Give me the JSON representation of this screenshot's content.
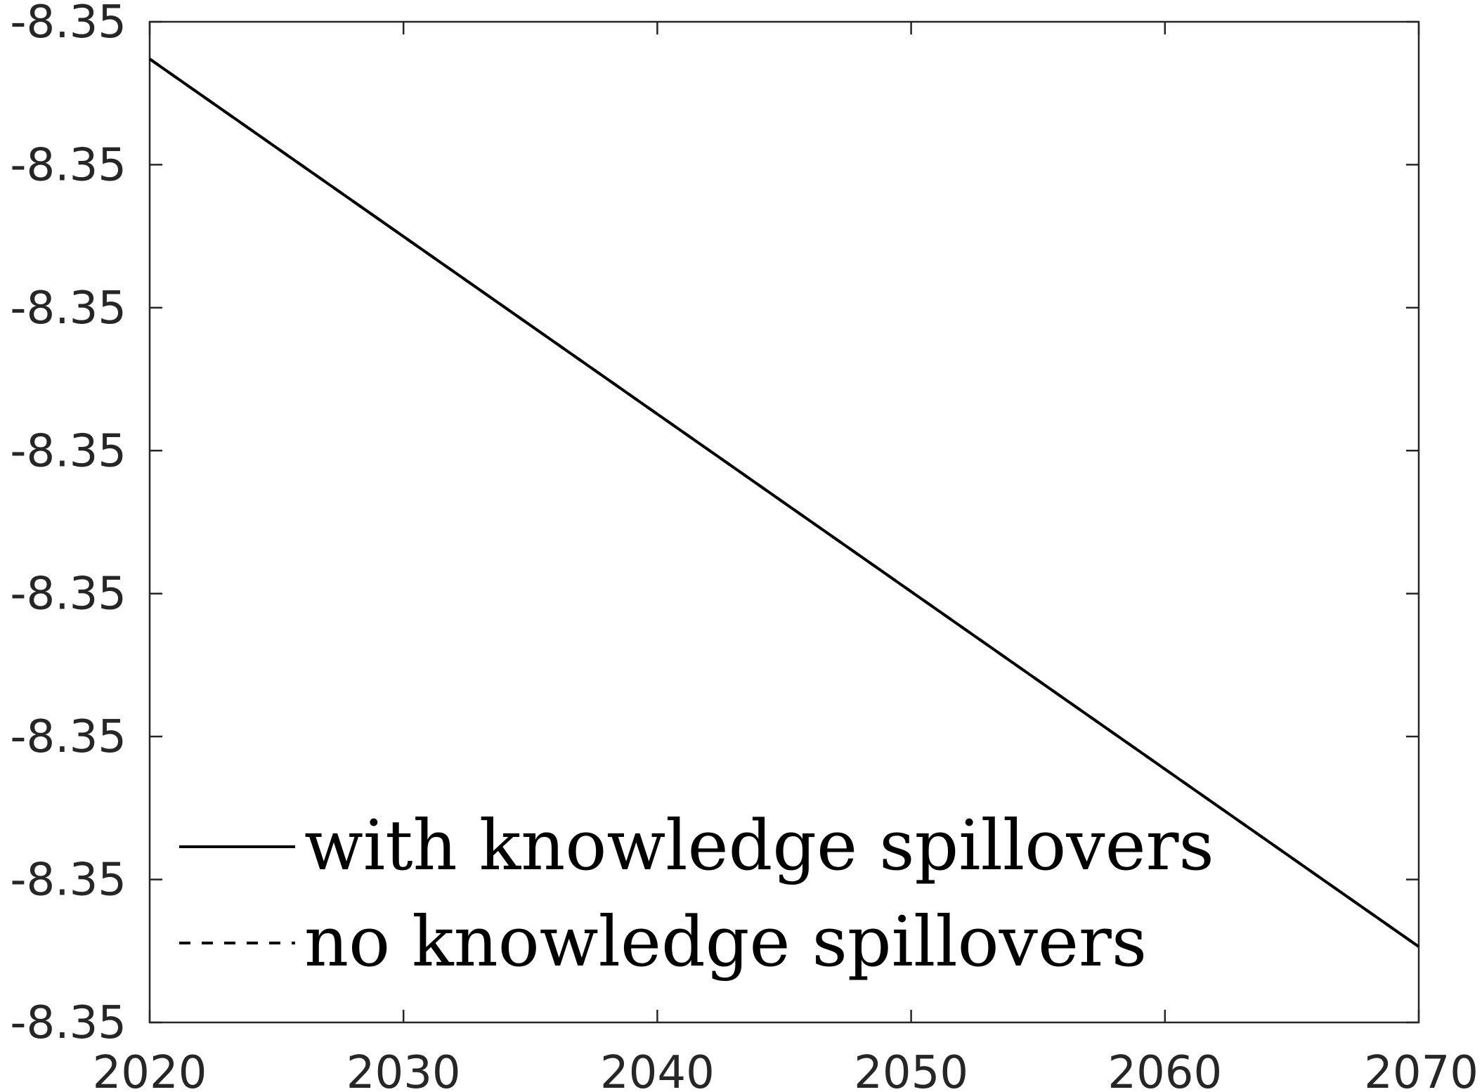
{
  "chart_data": {
    "type": "line",
    "title": "",
    "xlabel": "",
    "ylabel": "",
    "x_ticks": [
      "2020",
      "2030",
      "2040",
      "2050",
      "2060",
      "2070"
    ],
    "y_ticks": [
      "-8.35",
      "-8.35",
      "-8.35",
      "-8.35",
      "-8.35",
      "-8.35",
      "-8.35",
      "-8.35"
    ],
    "xlim": [
      2020,
      2070
    ],
    "ylim": [
      0,
      7
    ],
    "grid": false,
    "legend_position": "bottom-left",
    "series": [
      {
        "name": "with knowledge spillovers",
        "style": "solid",
        "color": "#000000",
        "x": [
          2020,
          2070
        ],
        "y": [
          6.74,
          0.53
        ]
      },
      {
        "name": "no knowledge spillovers",
        "style": "dashed",
        "color": "#000000",
        "x": [
          2020,
          2070
        ],
        "y": [
          6.74,
          0.53
        ]
      }
    ]
  }
}
